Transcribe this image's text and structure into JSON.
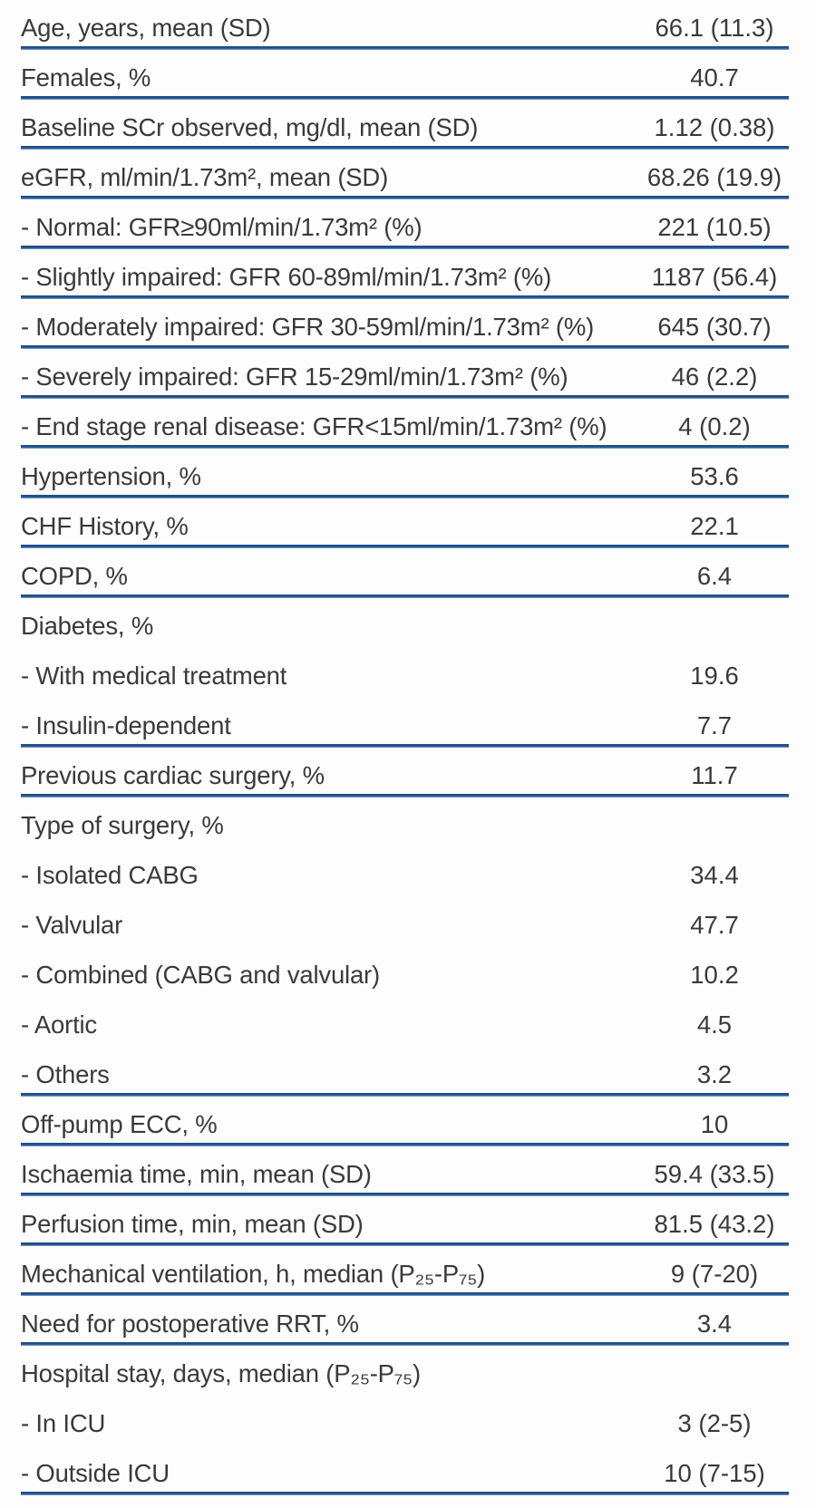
{
  "colors": {
    "rule_line": "#2a5c9c",
    "text": "#3a3a3a",
    "background": "#fdfdfd"
  },
  "table": {
    "rows": [
      {
        "label": "Age, years, mean (SD)",
        "value": "66.1 (11.3)"
      },
      {
        "label": "Females, %",
        "value": "40.7"
      },
      {
        "label": "Baseline SCr observed, mg/dl, mean (SD)",
        "value": "1.12 (0.38)"
      },
      {
        "label": "eGFR, ml/min/1.73m², mean (SD)",
        "value": "68.26 (19.9)"
      },
      {
        "label": "- Normal: GFR≥90ml/min/1.73m² (%)",
        "value": "221 (10.5)"
      },
      {
        "label": "- Slightly impaired: GFR 60-89ml/min/1.73m² (%)",
        "value": "1187 (56.4)"
      },
      {
        "label": "- Moderately impaired: GFR 30-59ml/min/1.73m² (%)",
        "value": "645 (30.7)"
      },
      {
        "label": "- Severely impaired: GFR 15-29ml/min/1.73m² (%)",
        "value": "46 (2.2)"
      },
      {
        "label": "- End stage renal disease: GFR<15ml/min/1.73m² (%)",
        "value": "4 (0.2)"
      },
      {
        "label": "Hypertension, %",
        "value": "53.6"
      },
      {
        "label": "CHF History, %",
        "value": "22.1"
      },
      {
        "label": "COPD, %",
        "value": "6.4"
      },
      {
        "label": "Diabetes, %",
        "value": ""
      },
      {
        "label": "- With medical treatment",
        "value": "19.6"
      },
      {
        "label": "- Insulin-dependent",
        "value": "7.7"
      },
      {
        "label": "Previous cardiac surgery, %",
        "value": "11.7"
      },
      {
        "label": "Type of surgery, %",
        "value": ""
      },
      {
        "label": "- Isolated CABG",
        "value": "34.4"
      },
      {
        "label": "- Valvular",
        "value": "47.7"
      },
      {
        "label": "- Combined (CABG and valvular)",
        "value": "10.2"
      },
      {
        "label": "- Aortic",
        "value": "4.5"
      },
      {
        "label": "- Others",
        "value": "3.2"
      },
      {
        "label": "Off-pump ECC, %",
        "value": "10"
      },
      {
        "label": "Ischaemia time, min, mean (SD)",
        "value": "59.4 (33.5)"
      },
      {
        "label": "Perfusion time, min, mean (SD)",
        "value": "81.5 (43.2)"
      },
      {
        "label": "Mechanical ventilation, h, median (P₂₅-P₇₅)",
        "value": "9 (7-20)"
      },
      {
        "label": "Need for postoperative RRT, %",
        "value": "3.4"
      },
      {
        "label": "Hospital stay, days, median (P₂₅-P₇₅)",
        "value": ""
      },
      {
        "label": "- In ICU",
        "value": "3 (2-5)"
      },
      {
        "label": "- Outside ICU",
        "value": "10 (7-15)"
      }
    ]
  }
}
